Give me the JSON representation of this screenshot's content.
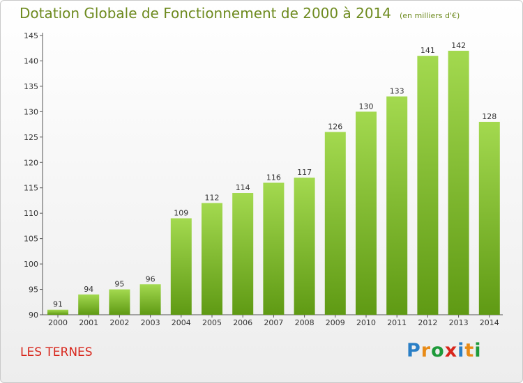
{
  "title": "Dotation Globale de Fonctionnement de 2000 à 2014",
  "unit": "(en milliers d'€)",
  "commune": "LES TERNES",
  "logo_text": "Proxiti",
  "colors": {
    "title": "#6d8a1e",
    "commune": "#d8261c",
    "bar_top": "#a3d94f",
    "bar_bottom": "#5f9a14"
  },
  "chart_data": {
    "type": "bar",
    "categories": [
      "2000",
      "2001",
      "2002",
      "2003",
      "2004",
      "2005",
      "2006",
      "2007",
      "2008",
      "2009",
      "2010",
      "2011",
      "2012",
      "2013",
      "2014"
    ],
    "values": [
      91,
      94,
      95,
      96,
      109,
      112,
      114,
      116,
      117,
      126,
      130,
      133,
      141,
      142,
      128
    ],
    "ylim": [
      90,
      145
    ],
    "yticks": [
      90,
      95,
      100,
      105,
      110,
      115,
      120,
      125,
      130,
      135,
      140,
      145
    ],
    "grid": false,
    "xlabel": "",
    "ylabel": ""
  }
}
